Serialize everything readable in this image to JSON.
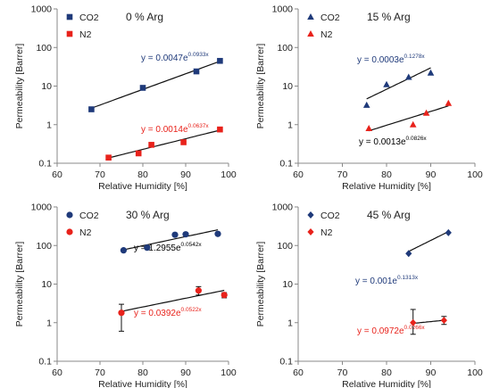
{
  "chart_data": [
    {
      "type": "scatter",
      "panel_title": "0 % Arg",
      "xlabel": "Relative Humidity [%]",
      "ylabel": "Permeability [Barrer]",
      "xlim": [
        60,
        100
      ],
      "ylim": [
        0.1,
        1000
      ],
      "yscale": "log",
      "x_ticks": [
        60,
        70,
        80,
        90,
        100
      ],
      "y_ticks": [
        0.1,
        1,
        10,
        100,
        1000
      ],
      "y_tick_labels": [
        "0.1",
        "1",
        "10",
        "100",
        "1000"
      ],
      "legend_position": "top-left",
      "series": [
        {
          "name": "CO2",
          "marker": "square",
          "color": "#1f3a7a",
          "x": [
            68,
            80,
            92.5,
            98
          ],
          "y": [
            2.5,
            9,
            24,
            45
          ],
          "trend": {
            "label": "y = 0.0047e",
            "exponent": "0.0933x",
            "a": 0.0047,
            "b": 0.0933,
            "x_range": [
              68,
              98
            ],
            "color": "#1f3a7a"
          }
        },
        {
          "name": "N2",
          "marker": "square",
          "color": "#e8221b",
          "x": [
            72,
            79,
            82,
            89.5,
            98
          ],
          "y": [
            0.14,
            0.18,
            0.3,
            0.35,
            0.75
          ],
          "trend": {
            "label": "y = 0.0014e",
            "exponent": "0.0637x",
            "a": 0.0014,
            "b": 0.0637,
            "x_range": [
              72,
              98
            ],
            "color": "#e8221b"
          }
        }
      ]
    },
    {
      "type": "scatter",
      "panel_title": "15 % Arg",
      "xlabel": "Relative Humidity [%]",
      "ylabel": "Permeability [Barrer]",
      "xlim": [
        60,
        100
      ],
      "ylim": [
        0.1,
        1000
      ],
      "yscale": "log",
      "x_ticks": [
        60,
        70,
        80,
        90,
        100
      ],
      "y_ticks": [
        0.1,
        1,
        10,
        100,
        1000
      ],
      "y_tick_labels": [
        "0.1",
        "1",
        "10",
        "100",
        "1000"
      ],
      "legend_position": "top-left",
      "series": [
        {
          "name": "CO2",
          "marker": "triangle",
          "color": "#1f3a7a",
          "x": [
            75.5,
            80,
            85,
            90
          ],
          "y": [
            3.2,
            11,
            17,
            22
          ],
          "trend": {
            "label": "y = 0.0003e",
            "exponent": "0.1278x",
            "a": 0.0003,
            "b": 0.1278,
            "x_range": [
              75.5,
              90
            ],
            "color": "#1f3a7a"
          }
        },
        {
          "name": "N2",
          "marker": "triangle",
          "color": "#e8221b",
          "x": [
            76,
            86,
            89,
            94
          ],
          "y": [
            0.8,
            1.0,
            2.0,
            3.6
          ],
          "trend": {
            "label": "y = 0.0013e",
            "exponent": "0.0826x",
            "a": 0.0013,
            "b": 0.0826,
            "x_range": [
              76,
              94
            ],
            "color": "#000000"
          }
        }
      ]
    },
    {
      "type": "scatter",
      "panel_title": "30 % Arg",
      "xlabel": "Relative Humidity [%]",
      "ylabel": "Permeability [Barrer]",
      "xlim": [
        60,
        100
      ],
      "ylim": [
        0.1,
        1000
      ],
      "yscale": "log",
      "x_ticks": [
        60,
        70,
        80,
        90,
        100
      ],
      "y_ticks": [
        0.1,
        1,
        10,
        100,
        1000
      ],
      "y_tick_labels": [
        "0.1",
        "1",
        "10",
        "100",
        "1000"
      ],
      "legend_position": "top-left",
      "series": [
        {
          "name": "CO2",
          "marker": "circle",
          "color": "#1f3a7a",
          "x": [
            75.5,
            81,
            87.5,
            90,
            97.5
          ],
          "y": [
            75,
            88,
            190,
            195,
            200
          ],
          "trend": {
            "label": "y = 1.2955e",
            "exponent": "0.0542x",
            "a": 1.2955,
            "b": 0.0542,
            "x_range": [
              75.5,
              97.5
            ],
            "color": "#000000"
          }
        },
        {
          "name": "N2",
          "marker": "circle",
          "color": "#e8221b",
          "x": [
            75,
            93,
            99
          ],
          "y": [
            1.8,
            6.8,
            5.2
          ],
          "error": [
            [
              0.6,
              3.0
            ],
            [
              5.2,
              8.6
            ],
            [
              4.4,
              6.0
            ]
          ],
          "trend": {
            "label": "y = 0.0392e",
            "exponent": "0.0522x",
            "a": 0.0392,
            "b": 0.0522,
            "x_range": [
              75,
              99
            ],
            "color": "#e8221b"
          }
        }
      ]
    },
    {
      "type": "scatter",
      "panel_title": "45 % Arg",
      "xlabel": "Relative Humidity [%]",
      "ylabel": "Permeability [Barrer]",
      "xlim": [
        60,
        100
      ],
      "ylim": [
        0.1,
        1000
      ],
      "yscale": "log",
      "x_ticks": [
        60,
        70,
        80,
        90,
        100
      ],
      "y_ticks": [
        0.1,
        1,
        10,
        100,
        1000
      ],
      "y_tick_labels": [
        "0.1",
        "1",
        "10",
        "100",
        "1000"
      ],
      "legend_position": "top-left",
      "series": [
        {
          "name": "CO2",
          "marker": "diamond",
          "color": "#1f3a7a",
          "x": [
            85,
            94
          ],
          "y": [
            62,
            215
          ],
          "trend": {
            "label": "y = 0.001e",
            "exponent": "0.1313x",
            "a": 0.001,
            "b": 0.1313,
            "x_range": [
              85,
              94
            ],
            "color": "#1f3a7a"
          }
        },
        {
          "name": "N2",
          "marker": "diamond",
          "color": "#e8221b",
          "x": [
            86,
            93
          ],
          "y": [
            1.0,
            1.15
          ],
          "error": [
            [
              0.5,
              2.2
            ],
            [
              0.9,
              1.45
            ]
          ],
          "trend": {
            "label": "y = 0.0972e",
            "exponent": "0.0266x",
            "a": 0.0972,
            "b": 0.0266,
            "x_range": [
              86,
              93
            ],
            "color": "#e8221b"
          }
        }
      ]
    }
  ]
}
